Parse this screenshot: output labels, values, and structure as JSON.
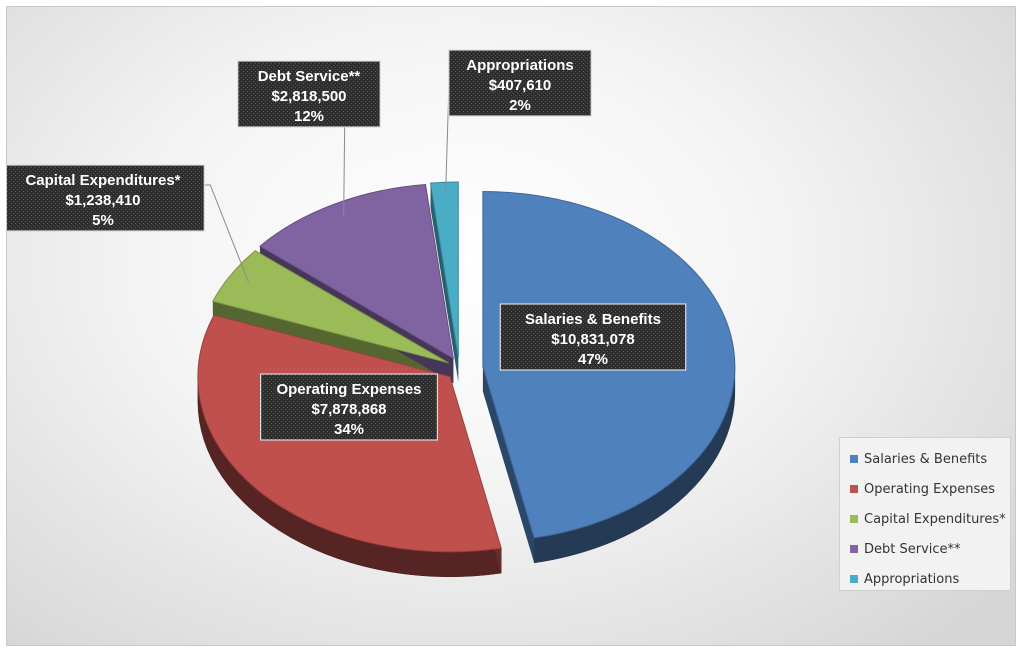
{
  "chart_data": {
    "type": "pie",
    "title": "",
    "style": "3d-exploded",
    "legend_position": "bottom-right",
    "slices": [
      {
        "name": "Salaries & Benefits",
        "value": 10831078,
        "value_label": "$10,831,078",
        "percent_label": "47%",
        "color": "#4f81bd"
      },
      {
        "name": "Operating Expenses",
        "value": 7878868,
        "value_label": "$7,878,868",
        "percent_label": "34%",
        "color": "#c0504d"
      },
      {
        "name": "Capital Expenditures*",
        "value": 1238410,
        "value_label": "$1,238,410",
        "percent_label": "5%",
        "color": "#9bbb59"
      },
      {
        "name": "Debt Service**",
        "value": 2818500,
        "value_label": "$2,818,500",
        "percent_label": "12%",
        "color": "#8064a2"
      },
      {
        "name": "Appropriations",
        "value": 407610,
        "value_label": "$407,610",
        "percent_label": "2%",
        "color": "#4bacc6"
      }
    ]
  }
}
